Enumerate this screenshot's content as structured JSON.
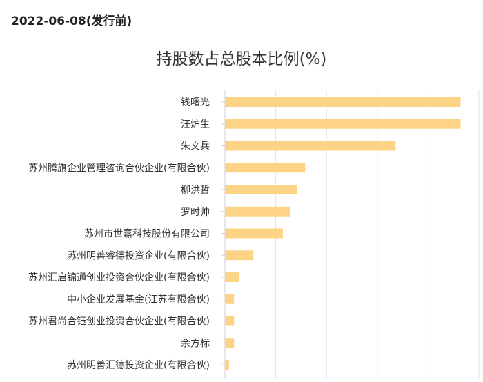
{
  "header": {
    "date_label": "2022-06-08(发行前)"
  },
  "chart_data": {
    "type": "bar",
    "orientation": "horizontal",
    "title": "持股数占总股本比例(%)",
    "xlabel": "",
    "ylabel": "",
    "categories": [
      "钱曙光",
      "汪炉生",
      "朱文兵",
      "苏州腾旗企业管理咨询合伙企业(有限合伙)",
      "柳洪哲",
      "罗时帅",
      "苏州市世嘉科技股份有限公司",
      "苏州明善睿德投资企业(有限合伙)",
      "苏州汇启锦通创业投资合伙企业(有限合伙)",
      "中小企业发展基金(江苏有限合伙)",
      "苏州君尚合钰创业投资合伙企业(有限合伙)",
      "余方标",
      "苏州明善汇德投资企业(有限合伙)"
    ],
    "values": [
      23.2,
      23.2,
      16.8,
      7.9,
      7.1,
      6.4,
      5.7,
      2.8,
      1.4,
      0.9,
      0.9,
      0.9,
      0.4
    ],
    "xlim": [
      0,
      25
    ],
    "grid": true,
    "colors": {
      "bar": "#fdd386",
      "grid": "#e2e2ec",
      "axis": "#d0d0dc"
    }
  }
}
